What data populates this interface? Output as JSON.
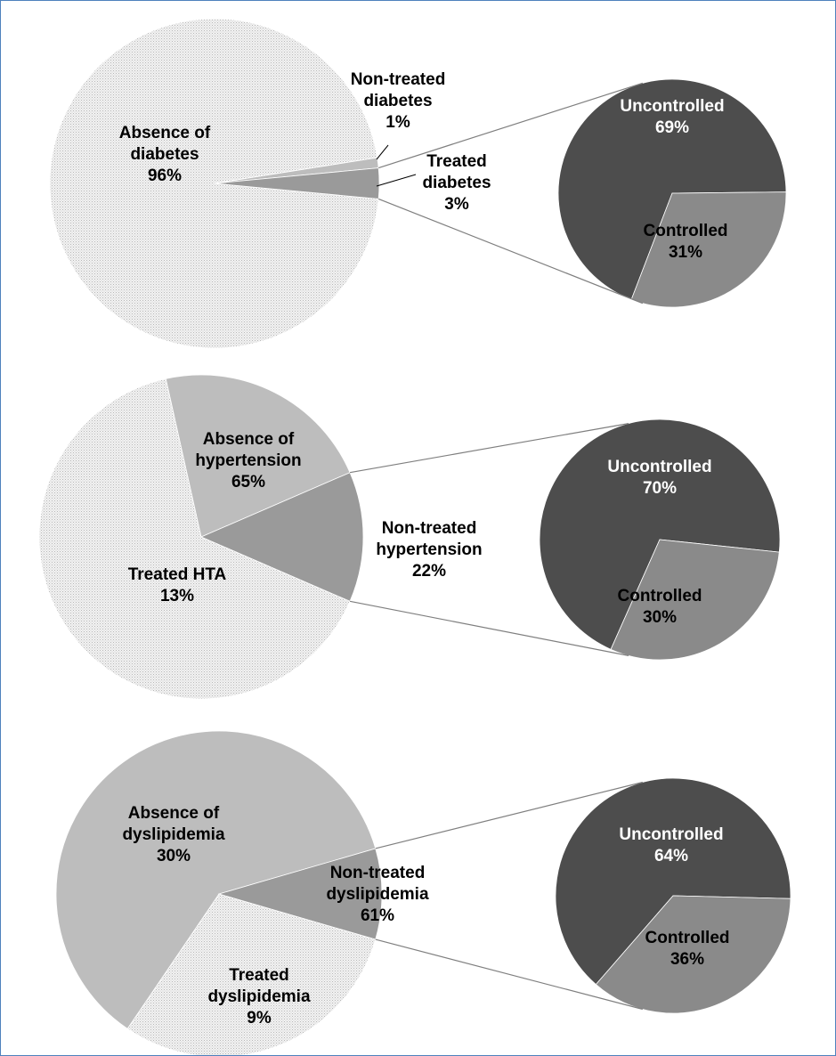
{
  "chart_data": [
    {
      "type": "pie",
      "slices": [
        {
          "label": [
            "Absence of",
            "diabetes",
            "96%"
          ],
          "value": 96
        },
        {
          "label": [
            "Non-treated",
            "diabetes",
            "1%"
          ],
          "value": 1
        },
        {
          "label": [
            "Treated",
            "diabetes",
            "3%"
          ],
          "value": 3
        }
      ],
      "breakdown": {
        "of": "Treated diabetes",
        "slices": [
          {
            "label": [
              "Uncontrolled",
              "69%"
            ],
            "value": 69
          },
          {
            "label": [
              "Controlled",
              "31%"
            ],
            "value": 31
          }
        ]
      }
    },
    {
      "type": "pie",
      "slices": [
        {
          "label": [
            "Absence of",
            "hypertension",
            "65%"
          ],
          "value": 65
        },
        {
          "label": [
            "Non-treated",
            "hypertension",
            "22%"
          ],
          "value": 22
        },
        {
          "label": [
            "Treated HTA",
            "13%"
          ],
          "value": 13
        }
      ],
      "breakdown": {
        "of": "Treated HTA",
        "slices": [
          {
            "label": [
              "Uncontrolled",
              "70%"
            ],
            "value": 70
          },
          {
            "label": [
              "Controlled",
              "30%"
            ],
            "value": 30
          }
        ]
      }
    },
    {
      "type": "pie",
      "slices": [
        {
          "label": [
            "Absence of",
            "dyslipidemia",
            "30%"
          ],
          "value": 30
        },
        {
          "label": [
            "Non-treated",
            "dyslipidemia",
            "61%"
          ],
          "value": 61
        },
        {
          "label": [
            "Treated",
            "dyslipidemia",
            "9%"
          ],
          "value": 9
        }
      ],
      "breakdown": {
        "of": "Treated dyslipidemia",
        "slices": [
          {
            "label": [
              "Uncontrolled",
              "64%"
            ],
            "value": 64
          },
          {
            "label": [
              "Controlled",
              "36%"
            ],
            "value": 36
          }
        ]
      }
    }
  ],
  "colors": {
    "absence": "#e4e4e4",
    "non_treated": "#bdbdbd",
    "treated": "#9a9a9a",
    "uncontrolled": "#4d4d4d",
    "controlled": "#8a8a8a",
    "connector": "#7f7f7f",
    "frame": "#4f81bd"
  }
}
